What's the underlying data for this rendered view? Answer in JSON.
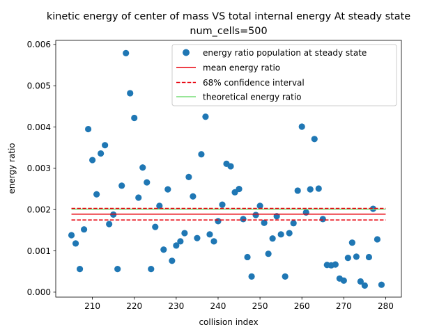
{
  "chart_data": {
    "type": "scatter",
    "title": "kinetic energy of center of mass VS total internal energy At steady state",
    "subtitle": "num_cells=500",
    "xlabel": "collision index",
    "ylabel": "energy ratio",
    "xlim": [
      201.25,
      283.75
    ],
    "ylim": [
      -0.00012,
      0.0061
    ],
    "xticks": [
      210,
      220,
      230,
      240,
      250,
      260,
      270,
      280
    ],
    "yticks": [
      0.0,
      0.001,
      0.002,
      0.003,
      0.004,
      0.005,
      0.006
    ],
    "ytick_labels": [
      "0.000",
      "0.001",
      "0.002",
      "0.003",
      "0.004",
      "0.005",
      "0.006"
    ],
    "grid": false,
    "legend_position": "top-right",
    "colors": {
      "points": "#1f77b4",
      "mean": "#e8000b",
      "ci": "#e8000b",
      "theory": "#77dd77"
    },
    "series": [
      {
        "name": "energy ratio population at steady state",
        "kind": "scatter",
        "x": [
          205,
          206,
          207,
          208,
          209,
          210,
          211,
          212,
          213,
          214,
          215,
          216,
          217,
          218,
          219,
          220,
          221,
          222,
          223,
          224,
          225,
          226,
          227,
          228,
          229,
          230,
          231,
          232,
          233,
          234,
          235,
          236,
          237,
          238,
          239,
          240,
          241,
          242,
          243,
          244,
          245,
          246,
          247,
          248,
          249,
          250,
          251,
          252,
          253,
          254,
          255,
          256,
          257,
          258,
          259,
          260,
          261,
          262,
          263,
          264,
          265,
          266,
          267,
          268,
          269,
          270,
          271,
          272,
          273,
          274,
          275,
          276,
          277,
          278,
          279
        ],
        "y": [
          0.00138,
          0.00118,
          0.00056,
          0.00152,
          0.00395,
          0.0032,
          0.00237,
          0.00336,
          0.00356,
          0.00165,
          0.00188,
          0.00056,
          0.00258,
          0.00579,
          0.00482,
          0.00422,
          0.00229,
          0.00302,
          0.00266,
          0.00056,
          0.00158,
          0.00209,
          0.00103,
          0.00249,
          0.00076,
          0.00113,
          0.00123,
          0.00143,
          0.00279,
          0.00232,
          0.00131,
          0.00334,
          0.00425,
          0.0014,
          0.00123,
          0.00172,
          0.00212,
          0.00311,
          0.00305,
          0.00242,
          0.0025,
          0.00177,
          0.00085,
          0.00038,
          0.00187,
          0.00209,
          0.00168,
          0.00093,
          0.0013,
          0.00184,
          0.0014,
          0.00038,
          0.00143,
          0.00167,
          0.00246,
          0.00401,
          0.00193,
          0.00249,
          0.00371,
          0.00251,
          0.00177,
          0.00066,
          0.00065,
          0.00067,
          0.00033,
          0.00028,
          0.00083,
          0.0012,
          0.00086,
          0.00026,
          0.00016,
          0.00085,
          0.00202,
          0.00128,
          0.00018
        ]
      },
      {
        "name": "mean energy ratio",
        "kind": "hline",
        "y": 0.00189,
        "x_range": [
          205,
          280
        ],
        "style": "solid"
      },
      {
        "name": "68% confidence interval",
        "kind": "hline",
        "y": [
          0.00175,
          0.00203
        ],
        "x_range": [
          205,
          280
        ],
        "style": "dashed"
      },
      {
        "name": "theoretical energy ratio",
        "kind": "hline",
        "y": 0.00201,
        "x_range": [
          205,
          280
        ],
        "style": "solid"
      }
    ]
  }
}
